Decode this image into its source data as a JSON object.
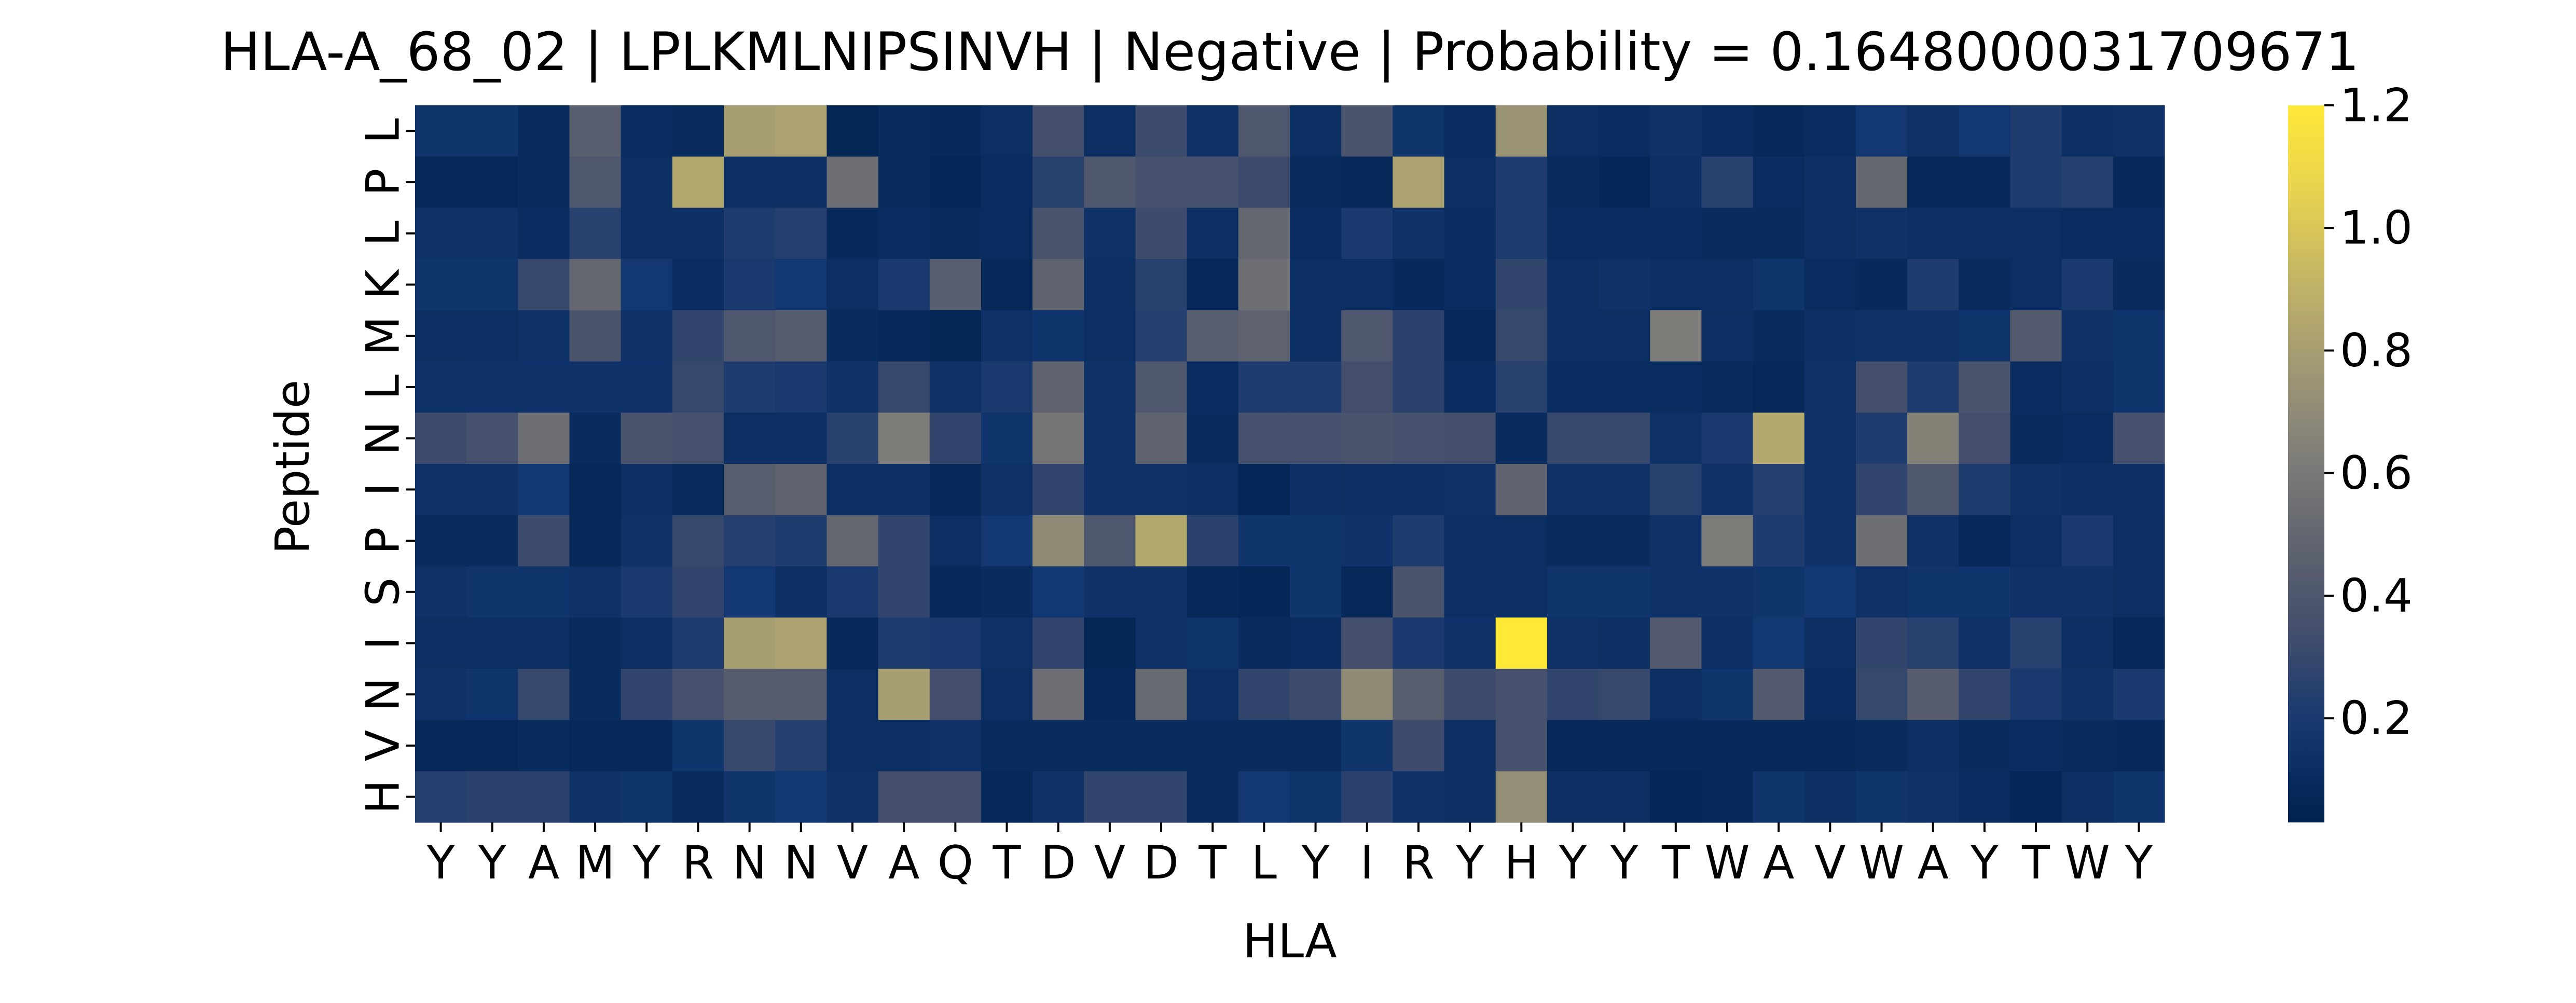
{
  "chart_data": {
    "type": "heatmap",
    "title": "HLA-A_68_02 | LPLKMLNIPSINVH | Negative | Probability = 0.1648000031709671",
    "xlabel": "HLA",
    "ylabel": "Peptide",
    "x_categories": [
      "Y",
      "Y",
      "A",
      "M",
      "Y",
      "R",
      "N",
      "N",
      "V",
      "A",
      "Q",
      "T",
      "D",
      "V",
      "D",
      "T",
      "L",
      "Y",
      "I",
      "R",
      "Y",
      "H",
      "Y",
      "Y",
      "T",
      "W",
      "A",
      "V",
      "W",
      "A",
      "Y",
      "T",
      "W",
      "Y"
    ],
    "y_categories": [
      "L",
      "P",
      "L",
      "K",
      "M",
      "L",
      "N",
      "I",
      "P",
      "S",
      "I",
      "N",
      "V",
      "H"
    ],
    "colorbar": {
      "colormap": "cividis",
      "vmin": 0.03,
      "vmax": 1.2,
      "ticks": [
        0.2,
        0.4,
        0.6,
        0.8,
        1.0,
        1.2
      ],
      "tick_labels": [
        "0.2",
        "0.4",
        "0.6",
        "0.8",
        "1.0",
        "1.2"
      ]
    },
    "values": [
      [
        0.16,
        0.16,
        0.1,
        0.45,
        0.11,
        0.1,
        0.8,
        0.82,
        0.06,
        0.1,
        0.09,
        0.12,
        0.35,
        0.12,
        0.32,
        0.14,
        0.4,
        0.12,
        0.38,
        0.16,
        0.11,
        0.75,
        0.12,
        0.11,
        0.14,
        0.11,
        0.08,
        0.11,
        0.18,
        0.14,
        0.18,
        0.22,
        0.13,
        0.14
      ],
      [
        0.08,
        0.08,
        0.1,
        0.4,
        0.12,
        0.85,
        0.12,
        0.12,
        0.55,
        0.1,
        0.07,
        0.11,
        0.25,
        0.4,
        0.36,
        0.36,
        0.32,
        0.1,
        0.08,
        0.82,
        0.12,
        0.22,
        0.1,
        0.07,
        0.13,
        0.25,
        0.11,
        0.13,
        0.5,
        0.08,
        0.08,
        0.22,
        0.24,
        0.09
      ],
      [
        0.14,
        0.14,
        0.11,
        0.25,
        0.12,
        0.12,
        0.22,
        0.24,
        0.09,
        0.11,
        0.1,
        0.11,
        0.38,
        0.14,
        0.32,
        0.13,
        0.5,
        0.11,
        0.2,
        0.14,
        0.11,
        0.22,
        0.11,
        0.11,
        0.11,
        0.1,
        0.1,
        0.12,
        0.14,
        0.12,
        0.13,
        0.12,
        0.11,
        0.11
      ],
      [
        0.16,
        0.16,
        0.3,
        0.5,
        0.18,
        0.11,
        0.2,
        0.18,
        0.12,
        0.2,
        0.45,
        0.08,
        0.48,
        0.12,
        0.25,
        0.08,
        0.55,
        0.12,
        0.12,
        0.09,
        0.11,
        0.28,
        0.12,
        0.14,
        0.12,
        0.13,
        0.16,
        0.11,
        0.09,
        0.22,
        0.1,
        0.12,
        0.2,
        0.1
      ],
      [
        0.12,
        0.12,
        0.14,
        0.38,
        0.14,
        0.28,
        0.4,
        0.44,
        0.1,
        0.08,
        0.06,
        0.14,
        0.16,
        0.12,
        0.24,
        0.45,
        0.48,
        0.12,
        0.4,
        0.26,
        0.08,
        0.3,
        0.12,
        0.12,
        0.62,
        0.12,
        0.1,
        0.13,
        0.14,
        0.14,
        0.16,
        0.42,
        0.14,
        0.16
      ],
      [
        0.14,
        0.15,
        0.15,
        0.15,
        0.15,
        0.3,
        0.22,
        0.2,
        0.14,
        0.3,
        0.14,
        0.2,
        0.48,
        0.14,
        0.4,
        0.11,
        0.22,
        0.22,
        0.34,
        0.26,
        0.11,
        0.25,
        0.11,
        0.11,
        0.11,
        0.1,
        0.08,
        0.14,
        0.35,
        0.22,
        0.38,
        0.11,
        0.13,
        0.16
      ],
      [
        0.32,
        0.36,
        0.55,
        0.1,
        0.38,
        0.36,
        0.12,
        0.12,
        0.25,
        0.62,
        0.28,
        0.16,
        0.58,
        0.14,
        0.48,
        0.1,
        0.36,
        0.36,
        0.38,
        0.36,
        0.35,
        0.1,
        0.3,
        0.3,
        0.14,
        0.2,
        0.85,
        0.14,
        0.22,
        0.65,
        0.34,
        0.1,
        0.11,
        0.36
      ],
      [
        0.14,
        0.14,
        0.18,
        0.08,
        0.13,
        0.1,
        0.45,
        0.48,
        0.12,
        0.13,
        0.08,
        0.14,
        0.28,
        0.14,
        0.14,
        0.12,
        0.07,
        0.13,
        0.12,
        0.12,
        0.14,
        0.48,
        0.14,
        0.14,
        0.25,
        0.14,
        0.24,
        0.14,
        0.28,
        0.4,
        0.22,
        0.14,
        0.13,
        0.13
      ],
      [
        0.1,
        0.1,
        0.32,
        0.08,
        0.14,
        0.3,
        0.24,
        0.22,
        0.5,
        0.28,
        0.12,
        0.18,
        0.7,
        0.4,
        0.85,
        0.26,
        0.16,
        0.16,
        0.15,
        0.22,
        0.12,
        0.12,
        0.1,
        0.1,
        0.14,
        0.62,
        0.22,
        0.15,
        0.55,
        0.14,
        0.08,
        0.12,
        0.2,
        0.12
      ],
      [
        0.14,
        0.16,
        0.16,
        0.14,
        0.2,
        0.28,
        0.18,
        0.12,
        0.2,
        0.28,
        0.08,
        0.1,
        0.18,
        0.14,
        0.14,
        0.08,
        0.07,
        0.16,
        0.08,
        0.38,
        0.13,
        0.12,
        0.16,
        0.16,
        0.15,
        0.15,
        0.16,
        0.18,
        0.14,
        0.16,
        0.16,
        0.14,
        0.14,
        0.12
      ],
      [
        0.12,
        0.12,
        0.12,
        0.1,
        0.12,
        0.22,
        0.8,
        0.82,
        0.08,
        0.22,
        0.2,
        0.14,
        0.28,
        0.06,
        0.14,
        0.16,
        0.1,
        0.11,
        0.35,
        0.2,
        0.15,
        1.2,
        0.14,
        0.12,
        0.42,
        0.13,
        0.18,
        0.12,
        0.28,
        0.25,
        0.14,
        0.25,
        0.12,
        0.08
      ],
      [
        0.14,
        0.16,
        0.3,
        0.1,
        0.28,
        0.36,
        0.44,
        0.44,
        0.12,
        0.8,
        0.34,
        0.12,
        0.55,
        0.08,
        0.52,
        0.12,
        0.28,
        0.32,
        0.7,
        0.45,
        0.32,
        0.36,
        0.28,
        0.3,
        0.12,
        0.16,
        0.42,
        0.11,
        0.3,
        0.44,
        0.28,
        0.2,
        0.14,
        0.2
      ],
      [
        0.08,
        0.08,
        0.1,
        0.08,
        0.08,
        0.16,
        0.3,
        0.24,
        0.12,
        0.12,
        0.14,
        0.1,
        0.1,
        0.1,
        0.1,
        0.1,
        0.1,
        0.1,
        0.16,
        0.32,
        0.12,
        0.36,
        0.08,
        0.08,
        0.09,
        0.09,
        0.08,
        0.08,
        0.1,
        0.12,
        0.1,
        0.11,
        0.1,
        0.09
      ],
      [
        0.24,
        0.26,
        0.26,
        0.14,
        0.16,
        0.1,
        0.16,
        0.18,
        0.14,
        0.34,
        0.34,
        0.08,
        0.14,
        0.28,
        0.28,
        0.1,
        0.18,
        0.16,
        0.26,
        0.14,
        0.12,
        0.72,
        0.12,
        0.12,
        0.07,
        0.09,
        0.16,
        0.12,
        0.16,
        0.14,
        0.11,
        0.07,
        0.12,
        0.16
      ]
    ]
  }
}
